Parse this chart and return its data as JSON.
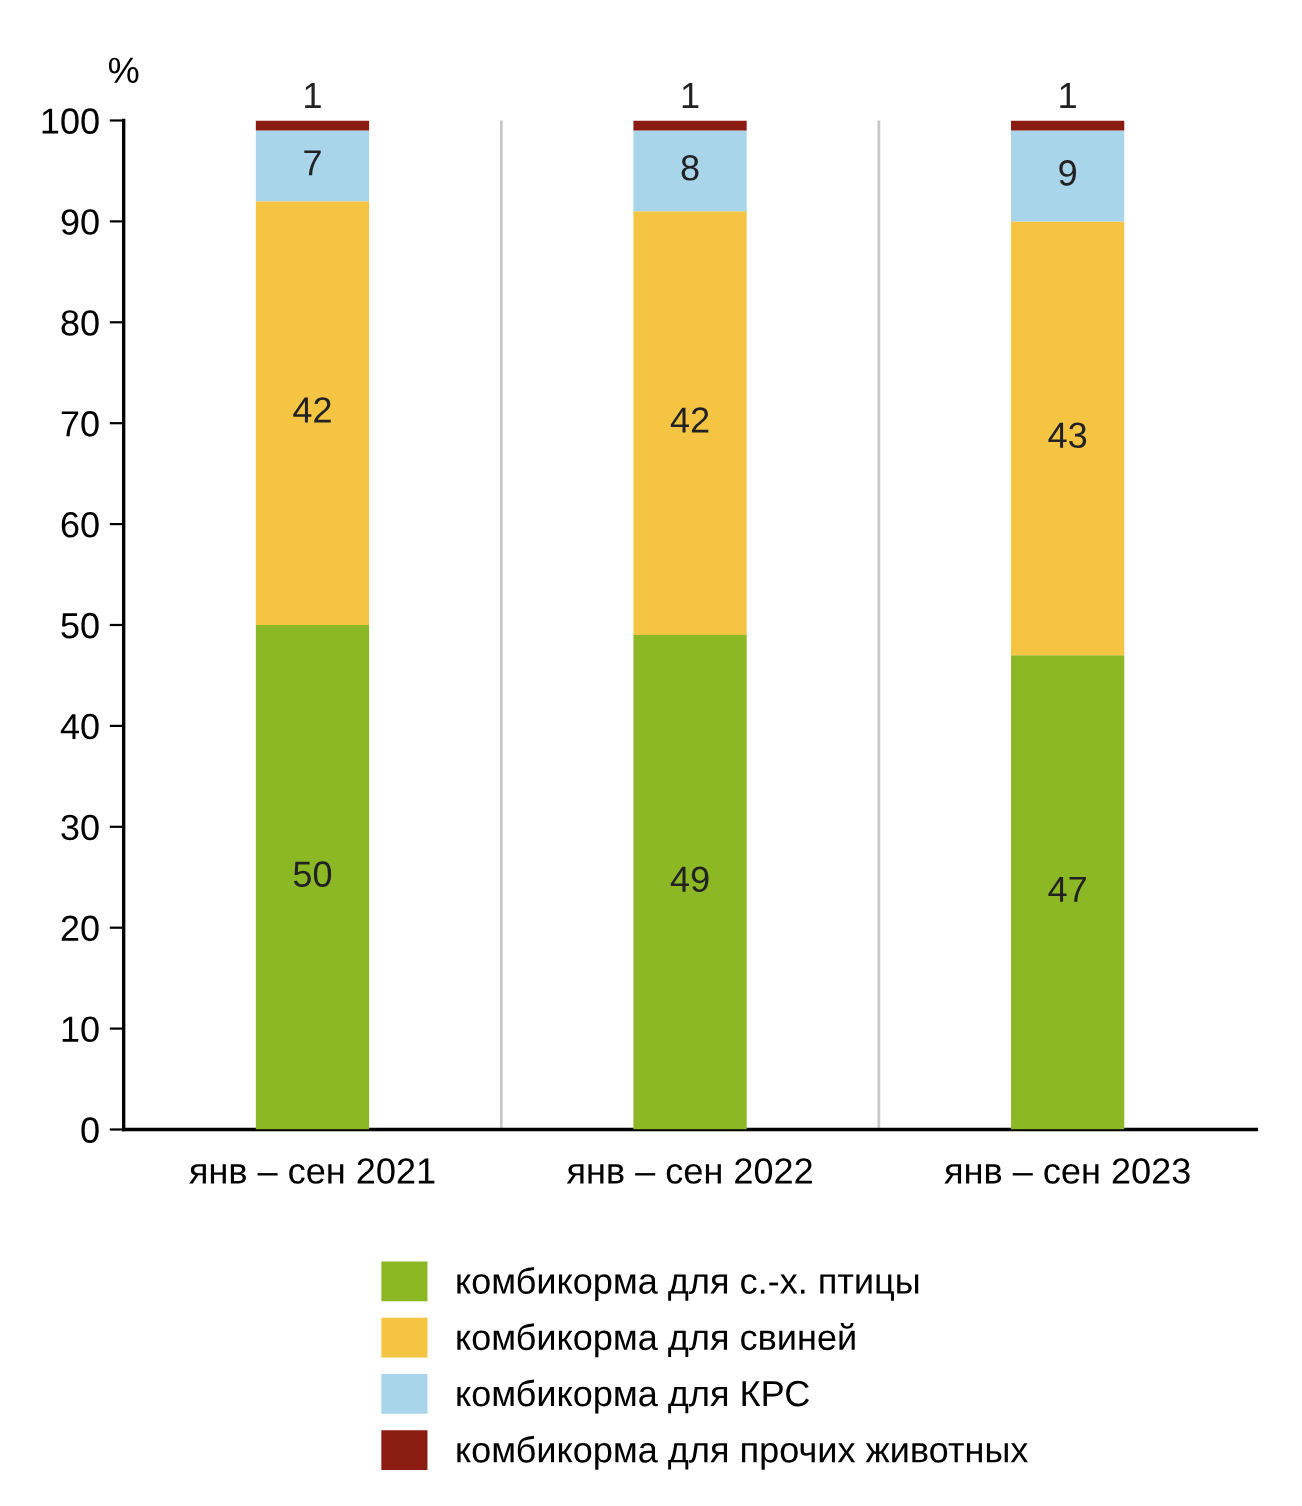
{
  "chart_data": {
    "type": "bar",
    "stacked": true,
    "ylabel": "%",
    "categories": [
      "янв – сен 2021",
      "янв – сен 2022",
      "янв – сен 2023"
    ],
    "series": [
      {
        "name": "комбикорма для с.-х. птицы",
        "color": "#8cb825",
        "values": [
          50,
          49,
          47
        ]
      },
      {
        "name": "комбикорма для свиней",
        "color": "#f5c443",
        "values": [
          42,
          42,
          43
        ]
      },
      {
        "name": "комбикорма для КРС",
        "color": "#a9d5ea",
        "values": [
          7,
          8,
          9
        ]
      },
      {
        "name": "комбикорма для прочих животных",
        "color": "#8b1c12",
        "values": [
          1,
          1,
          1
        ]
      }
    ],
    "ylim": [
      0,
      100
    ],
    "yticks": [
      0,
      10,
      20,
      30,
      40,
      50,
      60,
      70,
      80,
      90,
      100
    ],
    "grid": "x",
    "legend": "bottom",
    "data_labels": true
  }
}
